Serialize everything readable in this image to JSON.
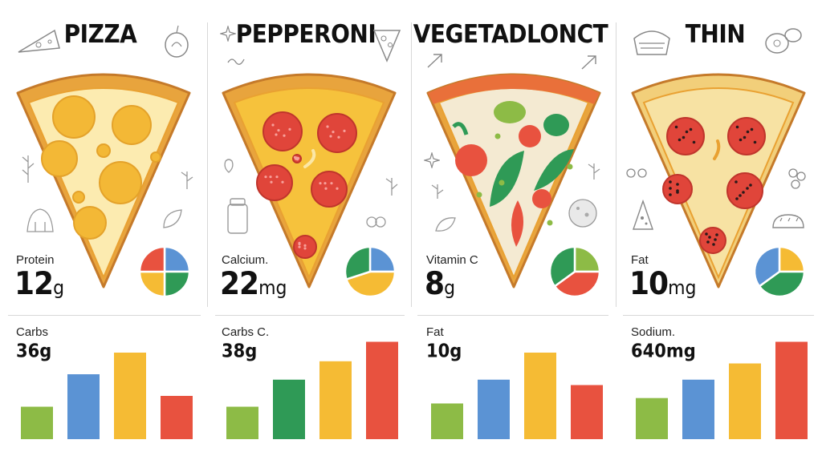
{
  "colors": {
    "green": "#8dbb46",
    "blue": "#5b93d4",
    "yellow": "#f5bb34",
    "red": "#e8523f",
    "dkgreen": "#2f9a56",
    "crust": "#e8a43d",
    "cheese": "#fbe7a6"
  },
  "panels": [
    {
      "title": "PIZZA",
      "nutrient_label": "Protein",
      "nutrient_value": "12",
      "nutrient_unit": "g",
      "bar_label": "Carbs",
      "bar_value": "36g",
      "topping": "cheese"
    },
    {
      "title": "PEPPERONI",
      "nutrient_label": "Calcium.",
      "nutrient_value": "22",
      "nutrient_unit": "mg",
      "bar_label": "Carbs C.",
      "bar_value": "38g",
      "topping": "pepperoni"
    },
    {
      "title": "VEGETADLONCT",
      "nutrient_label": "Vitamin C",
      "nutrient_value": "8",
      "nutrient_unit": "g",
      "bar_label": "Fat",
      "bar_value": "10g",
      "topping": "vegetable"
    },
    {
      "title": "THIN",
      "nutrient_label": "Fat",
      "nutrient_value": "10",
      "nutrient_unit": "mg",
      "bar_label": "Sodium.",
      "bar_value": "640mg",
      "topping": "thin"
    }
  ],
  "chart_data": [
    {
      "type": "pie",
      "slices": [
        {
          "color": "#5b93d4",
          "value": 25
        },
        {
          "color": "#2f9a56",
          "value": 25
        },
        {
          "color": "#f5bb34",
          "value": 25
        },
        {
          "color": "#e8523f",
          "value": 25
        }
      ]
    },
    {
      "type": "pie",
      "slices": [
        {
          "color": "#5b93d4",
          "value": 25
        },
        {
          "color": "#f5bb34",
          "value": 45
        },
        {
          "color": "#2f9a56",
          "value": 30
        }
      ]
    },
    {
      "type": "pie",
      "slices": [
        {
          "color": "#8dbb46",
          "value": 25
        },
        {
          "color": "#e8523f",
          "value": 40
        },
        {
          "color": "#2f9a56",
          "value": 35
        }
      ]
    },
    {
      "type": "pie",
      "slices": [
        {
          "color": "#f5bb34",
          "value": 25
        },
        {
          "color": "#2f9a56",
          "value": 40
        },
        {
          "color": "#5b93d4",
          "value": 35
        }
      ]
    },
    {
      "type": "bar",
      "values": [
        30,
        60,
        80,
        40
      ],
      "colors": [
        "#8dbb46",
        "#5b93d4",
        "#f5bb34",
        "#e8523f"
      ],
      "ylim": [
        0,
        100
      ]
    },
    {
      "type": "bar",
      "values": [
        30,
        55,
        72,
        90
      ],
      "colors": [
        "#8dbb46",
        "#2f9a56",
        "#f5bb34",
        "#e8523f"
      ],
      "ylim": [
        0,
        100
      ]
    },
    {
      "type": "bar",
      "values": [
        33,
        55,
        80,
        50
      ],
      "colors": [
        "#8dbb46",
        "#5b93d4",
        "#f5bb34",
        "#e8523f"
      ],
      "ylim": [
        0,
        100
      ]
    },
    {
      "type": "bar",
      "values": [
        38,
        55,
        70,
        90
      ],
      "colors": [
        "#8dbb46",
        "#5b93d4",
        "#f5bb34",
        "#e8523f"
      ],
      "ylim": [
        0,
        100
      ]
    }
  ]
}
